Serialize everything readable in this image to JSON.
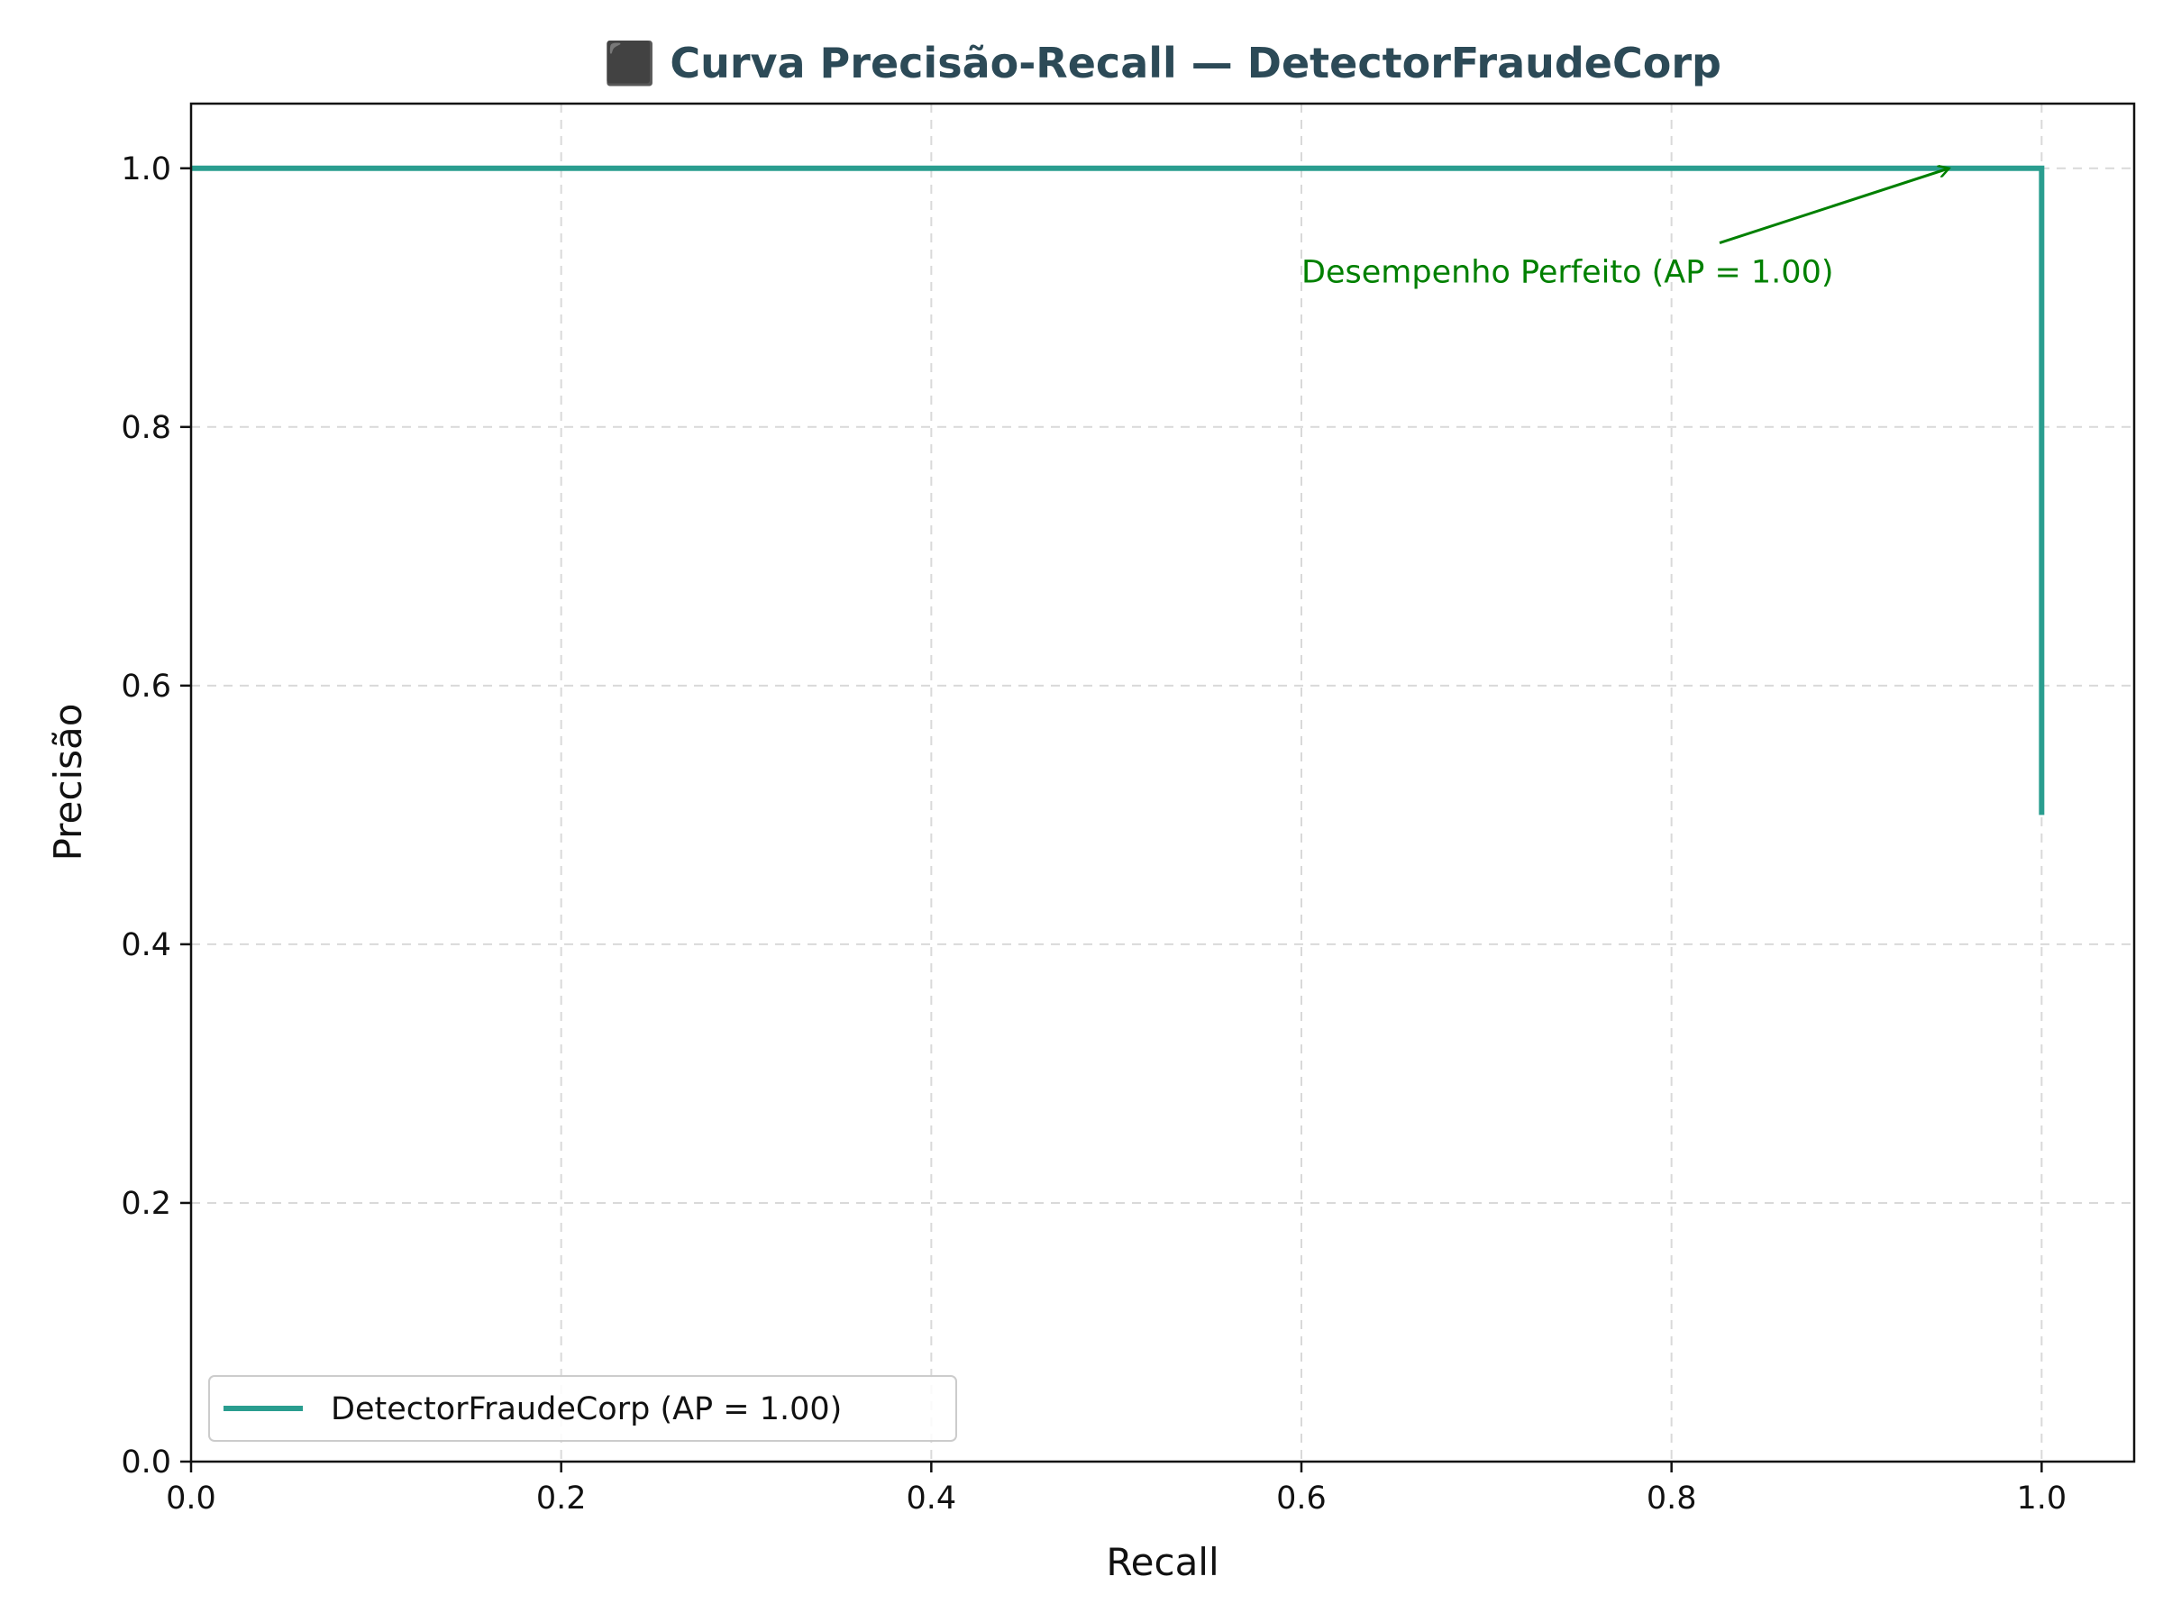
{
  "chart_data": {
    "type": "line",
    "title": "⬛ Curva Precisão-Recall — DetectorFraudeCorp",
    "xlabel": "Recall",
    "ylabel": "Precisão",
    "xlim": [
      0.0,
      1.05
    ],
    "ylim": [
      0.0,
      1.05
    ],
    "x_ticks": [
      "0.0",
      "0.2",
      "0.4",
      "0.6",
      "0.8",
      "1.0"
    ],
    "y_ticks": [
      "0.0",
      "0.2",
      "0.4",
      "0.6",
      "0.8",
      "1.0"
    ],
    "grid": true,
    "legend_position": "lower-left",
    "series": [
      {
        "name": "DetectorFraudeCorp (AP = 1.00)",
        "color": "#2a9d8f",
        "step": true,
        "x": [
          0.0,
          1.0,
          1.0
        ],
        "y": [
          1.0,
          1.0,
          0.5
        ]
      }
    ],
    "annotations": [
      {
        "text": "Desempenho Perfeito (AP = 1.00)",
        "color": "#008000",
        "text_x": 0.6,
        "text_y": 0.92,
        "arrow_to": [
          0.95,
          1.0
        ]
      }
    ]
  }
}
